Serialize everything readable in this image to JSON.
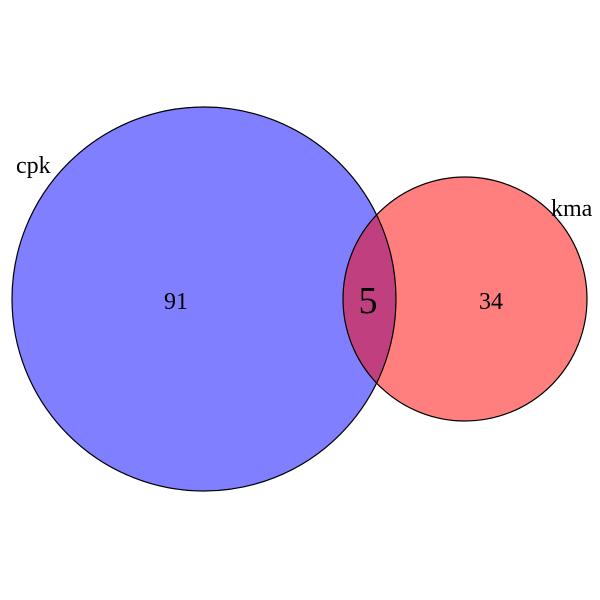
{
  "diagram": {
    "type": "venn",
    "sets": [
      {
        "id": "A",
        "label": "cpk",
        "only_count": "91",
        "color": "#0000ff"
      },
      {
        "id": "B",
        "label": "kma",
        "only_count": "34",
        "color": "#ff0000"
      }
    ],
    "intersection": {
      "sets": [
        "A",
        "B"
      ],
      "count": "5"
    },
    "fill_opacity": 0.5,
    "stroke_color": "#000000"
  }
}
